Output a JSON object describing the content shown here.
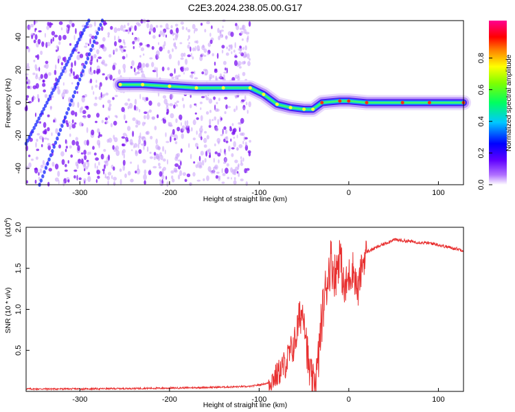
{
  "title": "C2E3.2024.238.05.00.G17",
  "colors": {
    "snr_line": "#e83030",
    "spectrum_dot": "#9b5cf0",
    "colormap": [
      "#ffffff",
      "#8a00ff",
      "#0000ff",
      "#00d0ff",
      "#00ff40",
      "#ffff00",
      "#ff8000",
      "#ff0000",
      "#ff00a0"
    ]
  },
  "chart_data": [
    {
      "type": "heatmap",
      "xlabel": "Height of straight line (km)",
      "ylabel": "Frequency (Hz)",
      "xlim": [
        -360,
        128
      ],
      "ylim": [
        -50,
        50
      ],
      "xticks": [
        -300,
        -200,
        -100,
        0,
        100
      ],
      "yticks": [
        -40,
        -20,
        0,
        20,
        40
      ],
      "colorbar": {
        "label": "Normalized spectral amplitude",
        "range": [
          0,
          1
        ],
        "ticks": [
          "0.0",
          "0.2",
          "0.4",
          "0.6",
          "0.8"
        ]
      },
      "ridge": [
        {
          "x": -255,
          "y": 11
        },
        {
          "x": -230,
          "y": 11
        },
        {
          "x": -200,
          "y": 10
        },
        {
          "x": -170,
          "y": 9
        },
        {
          "x": -140,
          "y": 9
        },
        {
          "x": -110,
          "y": 9
        },
        {
          "x": -95,
          "y": 5
        },
        {
          "x": -80,
          "y": -1
        },
        {
          "x": -65,
          "y": -3
        },
        {
          "x": -50,
          "y": -4
        },
        {
          "x": -40,
          "y": -4
        },
        {
          "x": -30,
          "y": 0
        },
        {
          "x": -10,
          "y": 1
        },
        {
          "x": 0,
          "y": 1
        },
        {
          "x": 20,
          "y": 0
        },
        {
          "x": 60,
          "y": 0
        },
        {
          "x": 90,
          "y": 0
        },
        {
          "x": 128,
          "y": 0
        }
      ]
    },
    {
      "type": "line",
      "xlabel": "Height of straight line (km)",
      "ylabel": "SNR (10 * v/v)",
      "scale_label": "(x10",
      "scale_exp": "4",
      "scale_close": ")",
      "xlim": [
        -360,
        128
      ],
      "ylim": [
        0,
        2.0
      ],
      "xticks": [
        -300,
        -200,
        -100,
        0,
        100
      ],
      "yticks": [
        "0.5",
        "1.0",
        "1.5",
        "2.0"
      ],
      "series": [
        {
          "points": [
            [
              -360,
              0.03
            ],
            [
              -300,
              0.03
            ],
            [
              -200,
              0.04
            ],
            [
              -150,
              0.05
            ],
            [
              -110,
              0.06
            ],
            [
              -90,
              0.1
            ],
            [
              -80,
              0.2
            ],
            [
              -70,
              0.35
            ],
            [
              -60,
              0.6
            ],
            [
              -55,
              0.9
            ],
            [
              -50,
              1.0
            ],
            [
              -45,
              0.3
            ],
            [
              -40,
              0.05
            ],
            [
              -35,
              0.25
            ],
            [
              -30,
              0.9
            ],
            [
              -25,
              1.3
            ],
            [
              -20,
              1.6
            ],
            [
              -15,
              1.4
            ],
            [
              -10,
              1.7
            ],
            [
              -5,
              1.2
            ],
            [
              0,
              1.4
            ],
            [
              5,
              1.5
            ],
            [
              10,
              1.2
            ],
            [
              15,
              1.55
            ],
            [
              20,
              1.7
            ],
            [
              30,
              1.75
            ],
            [
              50,
              1.85
            ],
            [
              75,
              1.82
            ],
            [
              95,
              1.8
            ],
            [
              110,
              1.76
            ],
            [
              128,
              1.72
            ]
          ]
        }
      ]
    }
  ]
}
